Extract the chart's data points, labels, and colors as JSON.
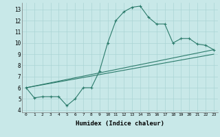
{
  "xlabel": "Humidex (Indice chaleur)",
  "ylabel": "",
  "bg_color": "#c8e8e8",
  "line_color": "#2a7a6a",
  "grid_color": "#aad4d4",
  "xlim": [
    -0.5,
    23.5
  ],
  "ylim": [
    3.8,
    13.6
  ],
  "xtick_labels": [
    "0",
    "1",
    "2",
    "3",
    "4",
    "5",
    "6",
    "7",
    "8",
    "9",
    "10",
    "11",
    "12",
    "13",
    "14",
    "15",
    "16",
    "17",
    "18",
    "19",
    "20",
    "21",
    "22",
    "23"
  ],
  "ytick_values": [
    4,
    5,
    6,
    7,
    8,
    9,
    10,
    11,
    12,
    13
  ],
  "series1_x": [
    0,
    1,
    2,
    3,
    4,
    5,
    6,
    7,
    8,
    9,
    10,
    11,
    12,
    13,
    14,
    15,
    16,
    17,
    18,
    19,
    20,
    21,
    22,
    23
  ],
  "series1_y": [
    6.0,
    5.1,
    5.2,
    5.2,
    5.2,
    4.4,
    5.0,
    6.0,
    6.0,
    7.5,
    10.0,
    12.0,
    12.8,
    13.2,
    13.3,
    12.3,
    11.7,
    11.7,
    10.0,
    10.4,
    10.4,
    9.9,
    9.8,
    9.4
  ],
  "series2_x": [
    0,
    23
  ],
  "series2_y": [
    6.0,
    9.4
  ],
  "series3_x": [
    0,
    23
  ],
  "series3_y": [
    6.0,
    9.0
  ]
}
